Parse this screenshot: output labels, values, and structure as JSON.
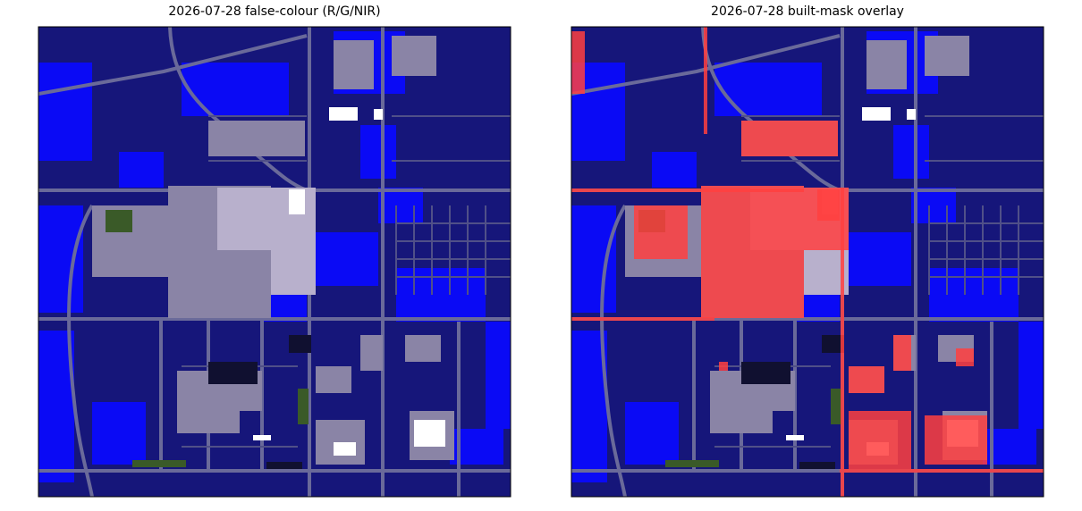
{
  "panels": [
    {
      "title": "2026-07-28  false-colour (R/G/NIR)"
    },
    {
      "title": "2026-07-28  built-mask overlay"
    }
  ]
}
